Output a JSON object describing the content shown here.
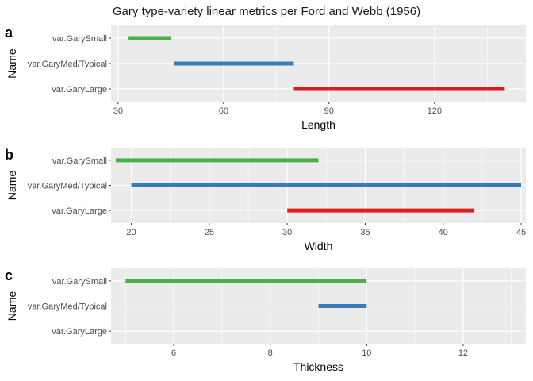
{
  "title": "Gary type-variety linear metrics per Ford and Webb (1956)",
  "y_axis_title": "Name",
  "categories": [
    "var.GarySmall",
    "var.GaryMed/Typical",
    "var.GaryLarge"
  ],
  "colors": {
    "var.GarySmall": "#4daf4a",
    "var.GaryMed/Typical": "#377eb8",
    "var.GaryLarge": "#e41a1c",
    "panel_background": "#ebebeb",
    "grid": "#ffffff"
  },
  "chart_data": [
    {
      "type": "range-bar",
      "tag": "a",
      "xlabel": "Length",
      "xlim": [
        28,
        146
      ],
      "xticks": [
        30,
        60,
        90,
        120
      ],
      "series": [
        {
          "name": "var.GarySmall",
          "min": 33,
          "max": 45
        },
        {
          "name": "var.GaryMed/Typical",
          "min": 46,
          "max": 80
        },
        {
          "name": "var.GaryLarge",
          "min": 80,
          "max": 140
        }
      ]
    },
    {
      "type": "range-bar",
      "tag": "b",
      "xlabel": "Width",
      "xlim": [
        18.7,
        45.3
      ],
      "xticks": [
        20,
        25,
        30,
        35,
        40,
        45
      ],
      "series": [
        {
          "name": "var.GarySmall",
          "min": 19,
          "max": 32
        },
        {
          "name": "var.GaryMed/Typical",
          "min": 20,
          "max": 45
        },
        {
          "name": "var.GaryLarge",
          "min": 30,
          "max": 42
        }
      ]
    },
    {
      "type": "range-bar",
      "tag": "c",
      "xlabel": "Thickness",
      "xlim": [
        4.7,
        13.3
      ],
      "xticks": [
        6,
        8,
        10,
        12
      ],
      "series": [
        {
          "name": "var.GarySmall",
          "min": 5,
          "max": 10
        },
        {
          "name": "var.GaryMed/Typical",
          "min": 9,
          "max": 10
        },
        {
          "name": "var.GaryLarge",
          "min": null,
          "max": null
        }
      ]
    }
  ]
}
